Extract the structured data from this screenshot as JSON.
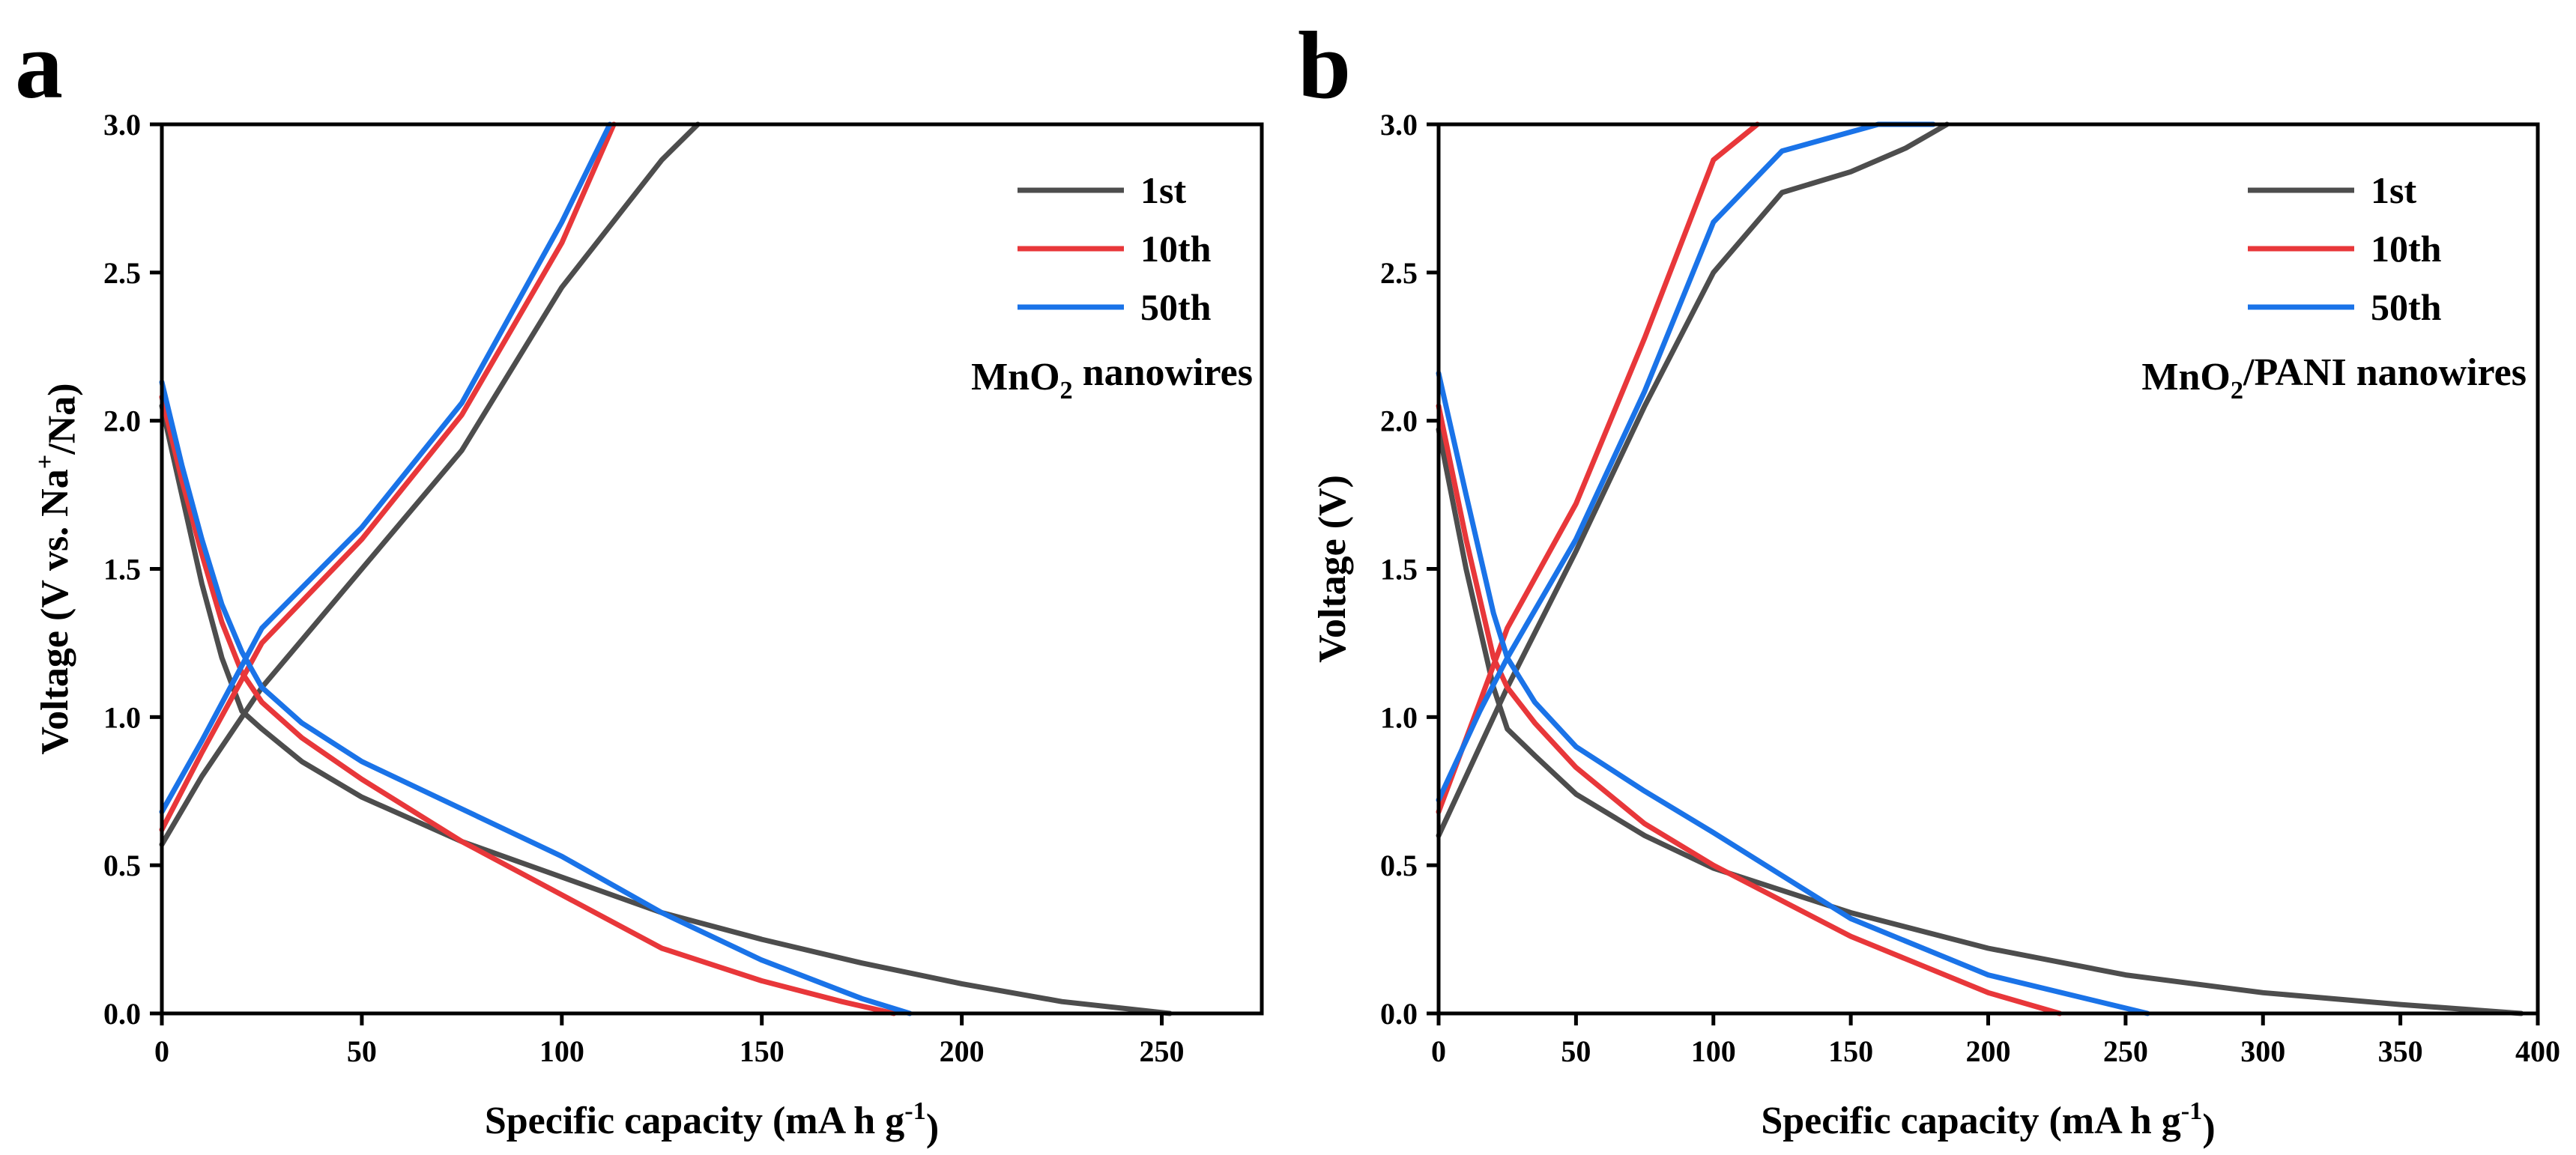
{
  "chart_data": [
    {
      "panel": "a",
      "type": "line",
      "title": "",
      "xlabel": "Specific capacity (mA h g⁻¹)",
      "xlabel_parts": [
        "Specific capacity (mA h g",
        "-1",
        ")"
      ],
      "ylabel": "Voltage (V vs. Na⁺/Na)",
      "ylabel_parts": [
        "Voltage (V vs. Na",
        "+",
        "/Na)"
      ],
      "xlim": [
        0,
        275
      ],
      "ylim": [
        0,
        3.0
      ],
      "xticks": [
        0,
        50,
        100,
        150,
        200,
        250
      ],
      "yticks": [
        0.0,
        0.5,
        1.0,
        1.5,
        2.0,
        2.5,
        3.0
      ],
      "xtick_labels": [
        "0",
        "50",
        "100",
        "150",
        "200",
        "250"
      ],
      "ytick_labels": [
        "0.0",
        "0.5",
        "1.0",
        "1.5",
        "2.0",
        "2.5",
        "3.0"
      ],
      "annotation": "MnO₂ nanowires",
      "annotation_parts": [
        "MnO",
        "2",
        " nanowires"
      ],
      "legend_position": "top-right",
      "series": [
        {
          "name": "1st",
          "color": "#4d4d4d",
          "discharge": [
            [
              0,
              2.05
            ],
            [
              5,
              1.75
            ],
            [
              10,
              1.45
            ],
            [
              15,
              1.2
            ],
            [
              20,
              1.02
            ],
            [
              25,
              0.96
            ],
            [
              35,
              0.85
            ],
            [
              50,
              0.73
            ],
            [
              75,
              0.58
            ],
            [
              100,
              0.46
            ],
            [
              125,
              0.34
            ],
            [
              150,
              0.25
            ],
            [
              175,
              0.17
            ],
            [
              200,
              0.1
            ],
            [
              225,
              0.04
            ],
            [
              252,
              0.0
            ]
          ],
          "charge": [
            [
              0,
              0.57
            ],
            [
              10,
              0.8
            ],
            [
              25,
              1.1
            ],
            [
              50,
              1.5
            ],
            [
              75,
              1.9
            ],
            [
              100,
              2.45
            ],
            [
              125,
              2.88
            ],
            [
              134,
              3.0
            ]
          ]
        },
        {
          "name": "10th",
          "color": "#e8373a",
          "discharge": [
            [
              0,
              2.08
            ],
            [
              5,
              1.8
            ],
            [
              10,
              1.55
            ],
            [
              15,
              1.32
            ],
            [
              20,
              1.15
            ],
            [
              25,
              1.05
            ],
            [
              35,
              0.93
            ],
            [
              50,
              0.79
            ],
            [
              75,
              0.58
            ],
            [
              100,
              0.4
            ],
            [
              125,
              0.22
            ],
            [
              150,
              0.11
            ],
            [
              170,
              0.04
            ],
            [
              183,
              0.0
            ]
          ],
          "charge": [
            [
              0,
              0.62
            ],
            [
              10,
              0.88
            ],
            [
              25,
              1.25
            ],
            [
              50,
              1.6
            ],
            [
              75,
              2.02
            ],
            [
              100,
              2.6
            ],
            [
              113,
              3.0
            ]
          ]
        },
        {
          "name": "50th",
          "color": "#1a73e8",
          "discharge": [
            [
              0,
              2.13
            ],
            [
              5,
              1.85
            ],
            [
              10,
              1.6
            ],
            [
              15,
              1.38
            ],
            [
              20,
              1.22
            ],
            [
              25,
              1.1
            ],
            [
              35,
              0.98
            ],
            [
              50,
              0.85
            ],
            [
              75,
              0.69
            ],
            [
              100,
              0.53
            ],
            [
              125,
              0.34
            ],
            [
              150,
              0.18
            ],
            [
              175,
              0.05
            ],
            [
              187,
              0.0
            ]
          ],
          "charge": [
            [
              0,
              0.68
            ],
            [
              10,
              0.92
            ],
            [
              25,
              1.3
            ],
            [
              50,
              1.64
            ],
            [
              75,
              2.06
            ],
            [
              100,
              2.67
            ],
            [
              112,
              3.0
            ]
          ]
        }
      ]
    },
    {
      "panel": "b",
      "type": "line",
      "title": "",
      "xlabel": "Specific capacity (mA h g⁻¹)",
      "xlabel_parts": [
        "Specific capacity (mA h g",
        "-1",
        ")"
      ],
      "ylabel": "Voltage (V)",
      "ylabel_parts": [
        "Voltage (V)",
        "",
        ""
      ],
      "xlim": [
        0,
        400
      ],
      "ylim": [
        0,
        3.0
      ],
      "xticks": [
        0,
        50,
        100,
        150,
        200,
        250,
        300,
        350,
        400
      ],
      "yticks": [
        0.0,
        0.5,
        1.0,
        1.5,
        2.0,
        2.5,
        3.0
      ],
      "xtick_labels": [
        "0",
        "50",
        "100",
        "150",
        "200",
        "250",
        "300",
        "350",
        "400"
      ],
      "ytick_labels": [
        "0.0",
        "0.5",
        "1.0",
        "1.5",
        "2.0",
        "2.5",
        "3.0"
      ],
      "annotation": "MnO₂/PANI nanowires",
      "annotation_parts": [
        "MnO",
        "2",
        "/PANI nanowires"
      ],
      "legend_position": "top-right",
      "series": [
        {
          "name": "1st",
          "color": "#4d4d4d",
          "discharge": [
            [
              0,
              1.97
            ],
            [
              10,
              1.5
            ],
            [
              20,
              1.1
            ],
            [
              25,
              0.96
            ],
            [
              35,
              0.87
            ],
            [
              50,
              0.74
            ],
            [
              75,
              0.6
            ],
            [
              100,
              0.49
            ],
            [
              150,
              0.34
            ],
            [
              200,
              0.22
            ],
            [
              250,
              0.13
            ],
            [
              300,
              0.07
            ],
            [
              350,
              0.03
            ],
            [
              394,
              0.0
            ]
          ],
          "charge": [
            [
              0,
              0.6
            ],
            [
              15,
              0.9
            ],
            [
              25,
              1.1
            ],
            [
              50,
              1.56
            ],
            [
              75,
              2.05
            ],
            [
              100,
              2.5
            ],
            [
              125,
              2.77
            ],
            [
              150,
              2.84
            ],
            [
              170,
              2.92
            ],
            [
              185,
              3.0
            ]
          ]
        },
        {
          "name": "10th",
          "color": "#e8373a",
          "discharge": [
            [
              0,
              2.05
            ],
            [
              10,
              1.6
            ],
            [
              20,
              1.2
            ],
            [
              25,
              1.1
            ],
            [
              35,
              0.98
            ],
            [
              50,
              0.83
            ],
            [
              75,
              0.64
            ],
            [
              100,
              0.5
            ],
            [
              150,
              0.26
            ],
            [
              200,
              0.07
            ],
            [
              226,
              0.0
            ]
          ],
          "charge": [
            [
              0,
              0.68
            ],
            [
              15,
              1.05
            ],
            [
              25,
              1.3
            ],
            [
              50,
              1.72
            ],
            [
              75,
              2.28
            ],
            [
              100,
              2.88
            ],
            [
              116,
              3.0
            ]
          ]
        },
        {
          "name": "50th",
          "color": "#1a73e8",
          "discharge": [
            [
              0,
              2.16
            ],
            [
              10,
              1.75
            ],
            [
              20,
              1.35
            ],
            [
              25,
              1.2
            ],
            [
              35,
              1.05
            ],
            [
              50,
              0.9
            ],
            [
              75,
              0.75
            ],
            [
              100,
              0.61
            ],
            [
              150,
              0.32
            ],
            [
              200,
              0.13
            ],
            [
              258,
              0.0
            ]
          ],
          "charge": [
            [
              0,
              0.72
            ],
            [
              15,
              1.02
            ],
            [
              25,
              1.2
            ],
            [
              50,
              1.6
            ],
            [
              75,
              2.1
            ],
            [
              100,
              2.67
            ],
            [
              125,
              2.91
            ],
            [
              160,
              3.0
            ],
            [
              180,
              3.0
            ]
          ]
        }
      ]
    }
  ]
}
